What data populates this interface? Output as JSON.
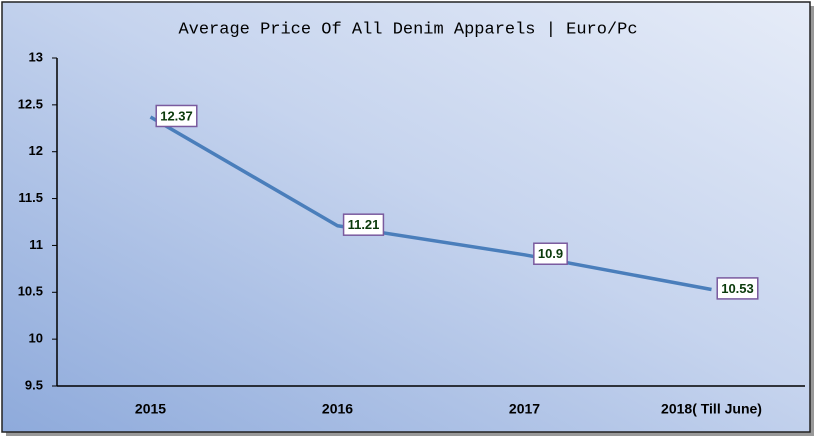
{
  "chart_data": {
    "type": "line",
    "title": "Average Price Of All Denim Apparels | Euro/Pc",
    "categories": [
      "2015",
      "2016",
      "2017",
      "2018( Till June)"
    ],
    "values": [
      12.37,
      11.21,
      10.9,
      10.53
    ],
    "color": "#4a7ebb",
    "ylim": [
      9.5,
      13
    ],
    "yticks": [
      9.5,
      10,
      10.5,
      11,
      11.5,
      12,
      12.5,
      13
    ],
    "grid": false
  }
}
